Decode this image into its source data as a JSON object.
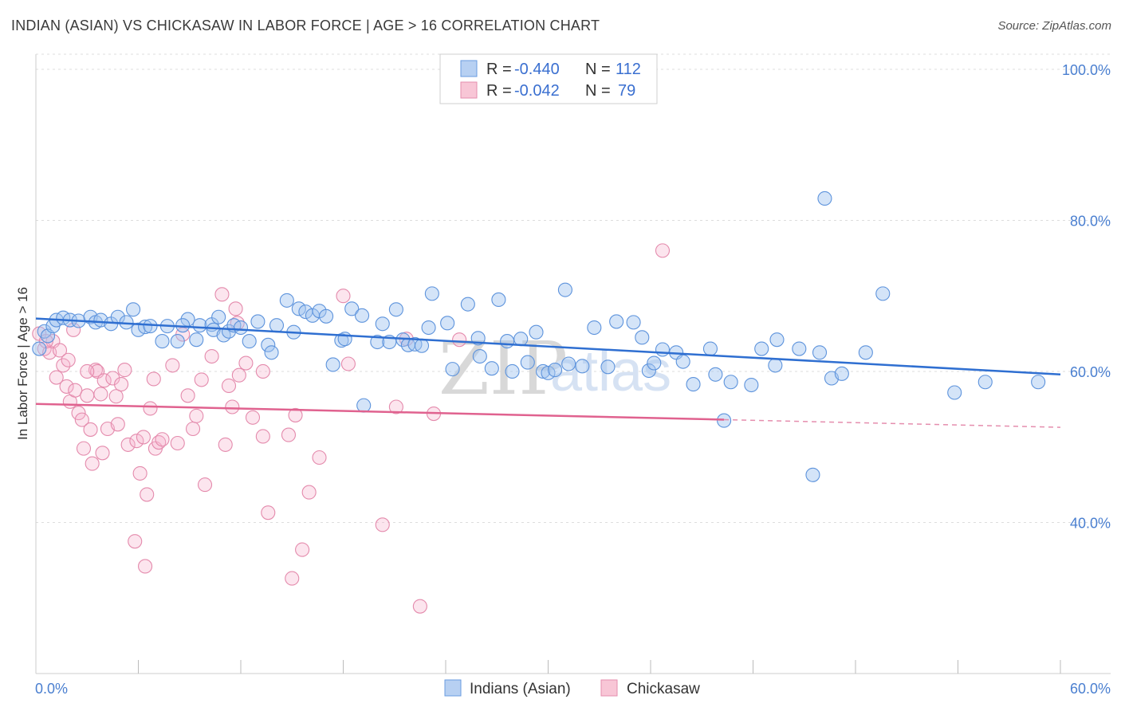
{
  "header": {
    "title": "INDIAN (ASIAN) VS CHICKASAW IN LABOR FORCE | AGE > 16 CORRELATION CHART",
    "source": "Source: ZipAtlas.com"
  },
  "colors": {
    "blue": "#4a86d8",
    "blue_fill": "#a9c7ef",
    "pink": "#e06a95",
    "pink_fill": "#f5b8cc",
    "axis_label": "#4a7fd0",
    "grid": "#dddddd"
  },
  "legend": {
    "rows": [
      {
        "r_label": "R =",
        "r_value": "-0.440",
        "n_label": "N =",
        "n_value": "112"
      },
      {
        "r_label": "R =",
        "r_value": "-0.042",
        "n_label": "N =",
        "n_value": "79"
      }
    ]
  },
  "bottom_legend": [
    "Indians (Asian)",
    "Chickasaw"
  ],
  "watermark": {
    "zip": "ZIP",
    "atlas": "atlas"
  },
  "chart_data": {
    "type": "scatter",
    "title": "INDIAN (ASIAN) VS CHICKASAW IN LABOR FORCE | AGE > 16 CORRELATION CHART",
    "xlabel": "",
    "ylabel": "In Labor Force | Age > 16",
    "xlim": [
      0,
      60
    ],
    "ylim": [
      20,
      102
    ],
    "x_tick_labels": [
      "0.0%",
      "60.0%"
    ],
    "y_ticks": [
      40,
      60,
      80,
      100
    ],
    "y_tick_labels": [
      "40.0%",
      "60.0%",
      "80.0%",
      "100.0%"
    ],
    "series": [
      {
        "name": "Indians (Asian)",
        "color": "#4a86d8",
        "R": -0.44,
        "N": 112,
        "trend": {
          "x0": 0,
          "y0": 67.0,
          "x1": 60,
          "y1": 59.6,
          "dashed_from": null
        },
        "points": [
          [
            0.2,
            63.0
          ],
          [
            0.5,
            65.3
          ],
          [
            0.7,
            64.7
          ],
          [
            1.0,
            66.0
          ],
          [
            1.2,
            66.8
          ],
          [
            1.6,
            67.1
          ],
          [
            2.0,
            66.8
          ],
          [
            2.5,
            66.7
          ],
          [
            3.2,
            67.2
          ],
          [
            3.5,
            66.5
          ],
          [
            3.8,
            66.8
          ],
          [
            4.4,
            66.3
          ],
          [
            4.8,
            67.2
          ],
          [
            5.3,
            66.5
          ],
          [
            5.7,
            68.2
          ],
          [
            6.0,
            65.5
          ],
          [
            6.4,
            65.9
          ],
          [
            6.7,
            66.0
          ],
          [
            7.4,
            64.0
          ],
          [
            7.7,
            66.0
          ],
          [
            8.3,
            64.0
          ],
          [
            8.9,
            66.9
          ],
          [
            8.6,
            66.1
          ],
          [
            9.4,
            64.2
          ],
          [
            9.6,
            66.1
          ],
          [
            10.3,
            66.2
          ],
          [
            10.4,
            65.5
          ],
          [
            10.7,
            67.2
          ],
          [
            11.0,
            64.8
          ],
          [
            11.3,
            65.3
          ],
          [
            11.6,
            66.1
          ],
          [
            12.0,
            65.8
          ],
          [
            12.5,
            64.0
          ],
          [
            13.0,
            66.6
          ],
          [
            13.6,
            63.5
          ],
          [
            13.8,
            62.5
          ],
          [
            14.1,
            66.1
          ],
          [
            14.7,
            69.4
          ],
          [
            15.1,
            65.2
          ],
          [
            15.4,
            68.3
          ],
          [
            15.8,
            67.9
          ],
          [
            16.2,
            67.4
          ],
          [
            16.6,
            68.0
          ],
          [
            17.0,
            67.3
          ],
          [
            17.4,
            60.9
          ],
          [
            17.9,
            64.1
          ],
          [
            18.1,
            64.3
          ],
          [
            18.5,
            68.3
          ],
          [
            19.1,
            67.4
          ],
          [
            19.2,
            55.5
          ],
          [
            20.0,
            63.9
          ],
          [
            20.3,
            66.3
          ],
          [
            20.7,
            63.9
          ],
          [
            21.1,
            68.2
          ],
          [
            21.5,
            64.2
          ],
          [
            21.8,
            63.5
          ],
          [
            22.2,
            63.6
          ],
          [
            22.6,
            63.4
          ],
          [
            23.0,
            65.8
          ],
          [
            23.2,
            70.3
          ],
          [
            24.1,
            66.4
          ],
          [
            24.4,
            60.3
          ],
          [
            25.3,
            68.9
          ],
          [
            25.9,
            64.4
          ],
          [
            26.0,
            62.0
          ],
          [
            26.7,
            60.4
          ],
          [
            27.1,
            69.5
          ],
          [
            27.6,
            64.0
          ],
          [
            27.9,
            60.0
          ],
          [
            28.4,
            64.3
          ],
          [
            28.8,
            61.2
          ],
          [
            29.3,
            65.2
          ],
          [
            29.7,
            60.0
          ],
          [
            30.0,
            59.8
          ],
          [
            30.4,
            60.2
          ],
          [
            31.0,
            70.8
          ],
          [
            31.2,
            61.0
          ],
          [
            32.0,
            60.7
          ],
          [
            32.7,
            65.8
          ],
          [
            33.5,
            60.6
          ],
          [
            34.0,
            66.6
          ],
          [
            35.0,
            66.5
          ],
          [
            35.5,
            64.5
          ],
          [
            35.9,
            60.1
          ],
          [
            36.2,
            61.1
          ],
          [
            36.7,
            62.9
          ],
          [
            37.5,
            62.5
          ],
          [
            37.9,
            61.3
          ],
          [
            38.5,
            58.3
          ],
          [
            39.5,
            63.0
          ],
          [
            39.8,
            59.6
          ],
          [
            40.7,
            58.6
          ],
          [
            41.9,
            58.2
          ],
          [
            42.5,
            63.0
          ],
          [
            43.3,
            60.8
          ],
          [
            43.4,
            64.2
          ],
          [
            44.7,
            63.0
          ],
          [
            45.9,
            62.5
          ],
          [
            46.6,
            59.1
          ],
          [
            46.2,
            82.9
          ],
          [
            47.2,
            59.7
          ],
          [
            48.6,
            62.5
          ],
          [
            49.6,
            70.3
          ],
          [
            53.8,
            57.2
          ],
          [
            55.6,
            58.6
          ],
          [
            58.7,
            58.6
          ],
          [
            40.3,
            53.5
          ],
          [
            45.5,
            46.3
          ]
        ]
      },
      {
        "name": "Chickasaw",
        "color": "#e06a95",
        "R": -0.042,
        "N": 79,
        "trend": {
          "x0": 0,
          "y0": 55.7,
          "x1": 60,
          "y1": 52.6,
          "dashed_from": 40.3
        },
        "points": [
          [
            0.2,
            65.0
          ],
          [
            0.5,
            63.0
          ],
          [
            0.8,
            62.5
          ],
          [
            1.0,
            64.0
          ],
          [
            1.4,
            62.8
          ],
          [
            1.2,
            59.2
          ],
          [
            1.6,
            60.8
          ],
          [
            1.8,
            58.0
          ],
          [
            1.9,
            61.5
          ],
          [
            2.0,
            56.0
          ],
          [
            2.3,
            57.5
          ],
          [
            2.5,
            54.5
          ],
          [
            2.7,
            53.6
          ],
          [
            2.8,
            49.8
          ],
          [
            3.0,
            56.8
          ],
          [
            3.2,
            52.3
          ],
          [
            3.3,
            47.8
          ],
          [
            3.5,
            60.2
          ],
          [
            3.6,
            60.0
          ],
          [
            3.8,
            57.0
          ],
          [
            3.9,
            49.2
          ],
          [
            4.0,
            58.8
          ],
          [
            4.2,
            52.4
          ],
          [
            4.5,
            59.1
          ],
          [
            4.7,
            56.7
          ],
          [
            4.8,
            53.0
          ],
          [
            5.0,
            58.3
          ],
          [
            5.2,
            60.2
          ],
          [
            5.4,
            50.3
          ],
          [
            5.8,
            37.5
          ],
          [
            5.9,
            50.8
          ],
          [
            6.1,
            46.5
          ],
          [
            6.3,
            51.3
          ],
          [
            6.4,
            34.2
          ],
          [
            6.5,
            43.7
          ],
          [
            6.7,
            55.1
          ],
          [
            6.9,
            59.0
          ],
          [
            7.0,
            49.8
          ],
          [
            7.2,
            50.6
          ],
          [
            7.4,
            51.0
          ],
          [
            8.0,
            60.8
          ],
          [
            8.3,
            50.5
          ],
          [
            8.6,
            64.9
          ],
          [
            8.9,
            56.8
          ],
          [
            9.2,
            52.4
          ],
          [
            9.4,
            54.1
          ],
          [
            9.7,
            58.9
          ],
          [
            9.9,
            45.0
          ],
          [
            10.3,
            62.0
          ],
          [
            10.9,
            70.2
          ],
          [
            11.1,
            50.3
          ],
          [
            11.3,
            58.1
          ],
          [
            11.5,
            55.3
          ],
          [
            11.7,
            68.3
          ],
          [
            11.8,
            66.4
          ],
          [
            11.9,
            59.5
          ],
          [
            12.3,
            61.1
          ],
          [
            12.7,
            53.9
          ],
          [
            13.3,
            51.4
          ],
          [
            13.6,
            41.3
          ],
          [
            13.3,
            60.0
          ],
          [
            14.8,
            51.6
          ],
          [
            15.0,
            32.6
          ],
          [
            15.2,
            54.2
          ],
          [
            15.6,
            36.4
          ],
          [
            16.0,
            44.0
          ],
          [
            16.6,
            48.6
          ],
          [
            18.0,
            70.0
          ],
          [
            18.3,
            61.0
          ],
          [
            20.3,
            39.7
          ],
          [
            21.1,
            55.3
          ],
          [
            21.7,
            64.3
          ],
          [
            22.5,
            28.9
          ],
          [
            23.3,
            54.4
          ],
          [
            24.8,
            64.2
          ],
          [
            36.7,
            76.0
          ],
          [
            2.2,
            65.5
          ],
          [
            0.6,
            64.0
          ],
          [
            3.0,
            60.0
          ]
        ]
      }
    ]
  }
}
